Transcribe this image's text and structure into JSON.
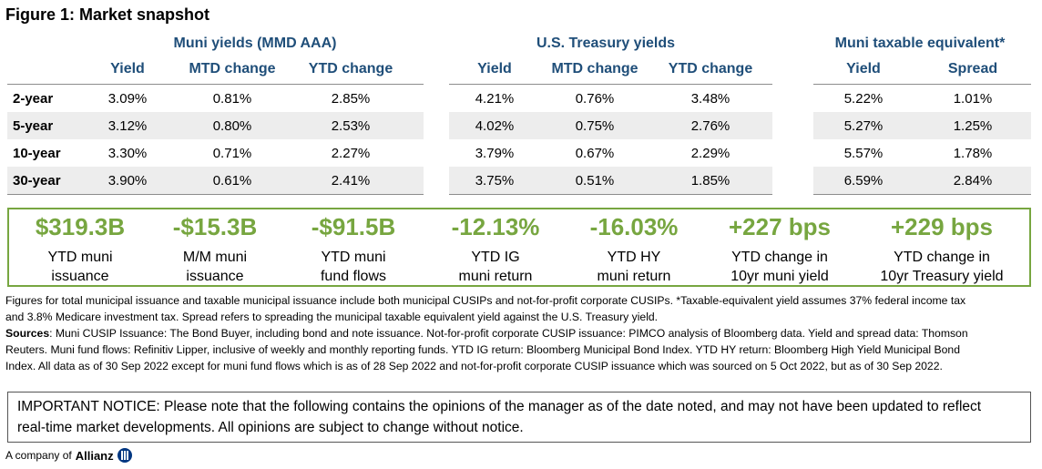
{
  "figure_title": "Figure 1: Market snapshot",
  "groups": {
    "muni": "Muni yields (MMD AAA)",
    "treasury": "U.S. Treasury yields",
    "taxable": "Muni taxable equivalent*"
  },
  "headers": {
    "muni": [
      "Yield",
      "MTD change",
      "YTD change"
    ],
    "treasury": [
      "Yield",
      "MTD change",
      "YTD change"
    ],
    "taxable": [
      "Yield",
      "Spread"
    ]
  },
  "rows": [
    {
      "label": "2-year",
      "muni": [
        "3.09%",
        "0.81%",
        "2.85%"
      ],
      "treasury": [
        "4.21%",
        "0.76%",
        "3.48%"
      ],
      "taxable": [
        "5.22%",
        "1.01%"
      ]
    },
    {
      "label": "5-year",
      "muni": [
        "3.12%",
        "0.80%",
        "2.53%"
      ],
      "treasury": [
        "4.02%",
        "0.75%",
        "2.76%"
      ],
      "taxable": [
        "5.27%",
        "1.25%"
      ]
    },
    {
      "label": "10-year",
      "muni": [
        "3.30%",
        "0.71%",
        "2.27%"
      ],
      "treasury": [
        "3.79%",
        "0.67%",
        "2.29%"
      ],
      "taxable": [
        "5.57%",
        "1.78%"
      ]
    },
    {
      "label": "30-year",
      "muni": [
        "3.90%",
        "0.61%",
        "2.41%"
      ],
      "treasury": [
        "3.75%",
        "0.51%",
        "1.85%"
      ],
      "taxable": [
        "6.59%",
        "2.84%"
      ]
    }
  ],
  "kpis": [
    {
      "value": "$319.3B",
      "line1": "YTD muni",
      "line2": "issuance"
    },
    {
      "value": "-$15.3B",
      "line1": "M/M muni",
      "line2": "issuance"
    },
    {
      "value": "-$91.5B",
      "line1": "YTD muni",
      "line2": "fund flows"
    },
    {
      "value": "-12.13%",
      "line1": "YTD IG",
      "line2": "muni return"
    },
    {
      "value": "-16.03%",
      "line1": "YTD HY",
      "line2": "muni return"
    },
    {
      "value": "+227 bps",
      "line1": "YTD change in",
      "line2": "10yr muni yield"
    },
    {
      "value": "+229 bps",
      "line1": "YTD change in",
      "line2": "10yr Treasury yield"
    }
  ],
  "notes": {
    "line1": "Figures for total municipal issuance and taxable municipal issuance include both municipal CUSIPs and not-for-profit corporate CUSIPs. *Taxable-equivalent yield assumes 37% federal income tax",
    "line2": "and 3.8% Medicare investment tax. Spread refers to spreading the municipal taxable equivalent yield against the U.S. Treasury yield.",
    "sources_label": "Sources",
    "sources_line1": ": Muni CUSIP Issuance: The Bond Buyer, including bond and note issuance. Not-for-profit corporate CUSIP issuance: PIMCO analysis of Bloomberg data. Yield and spread data: Thomson",
    "sources_line2": "Reuters. Muni fund flows: Refinitiv Lipper, inclusive of weekly and monthly reporting funds. YTD IG return: Bloomberg Municipal Bond Index. YTD HY return: Bloomberg High Yield Municipal Bond",
    "sources_line3": "Index. All data as of 30 Sep 2022 except for muni fund flows which is as of 28 Sep 2022 and not-for-profit corporate CUSIP issuance which was sourced on 5 Oct 2022, but as of 30 Sep 2022."
  },
  "notice": {
    "line1": "IMPORTANT NOTICE: Please note that the following contains the opinions of the manager as of the date noted, and may not have been updated to reflect",
    "line2": "real-time market developments. All opinions are subject to change without notice."
  },
  "footer": {
    "prefix": "A company of",
    "brand": "Allianz"
  }
}
